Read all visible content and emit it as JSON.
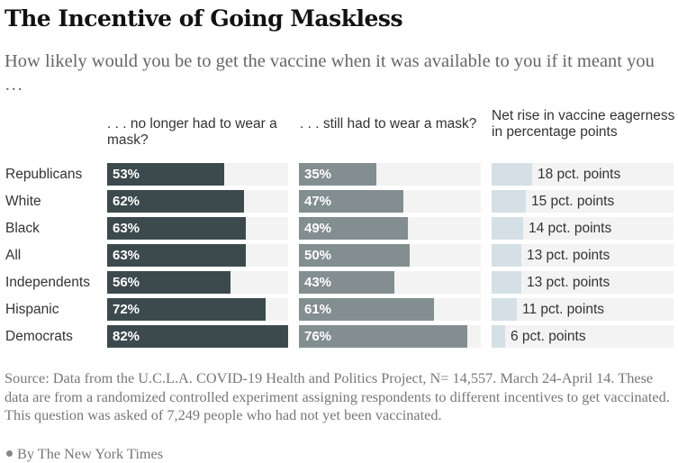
{
  "title": "The Incentive of Going Maskless",
  "subtitle": "How likely would you be to get the vaccine when it was available to you if it meant you …",
  "source": "Source: Data from the U.C.L.A. COVID-19 Health and Politics Project, N= 14,557. March 24-April 14. These data are from a randomized controlled experiment assigning respondents to different incentives to get vaccinated. This question was asked of 7,249 people who had not yet been vaccinated.",
  "byline": "By The New York Times",
  "colors": {
    "no_mask": "#3d4a4d",
    "still_mask": "#838e91",
    "net_rise": "#d4e0e5",
    "track": "#f3f3f3"
  },
  "chart_data": {
    "type": "bar",
    "orientation": "horizontal",
    "title": "The Incentive of Going Maskless",
    "subtitle": "How likely would you be to get the vaccine when it was available to you if it meant you …",
    "categories": [
      "Republicans",
      "White",
      "Black",
      "All",
      "Independents",
      "Hispanic",
      "Democrats"
    ],
    "series": [
      {
        "name": ". . . no longer had to wear a mask?",
        "unit": "%",
        "values": [
          53,
          62,
          63,
          63,
          56,
          72,
          82
        ],
        "labels": [
          "53%",
          "62%",
          "63%",
          "63%",
          "56%",
          "72%",
          "82%"
        ]
      },
      {
        "name": ". . . still had to wear a mask?",
        "unit": "%",
        "values": [
          35,
          47,
          49,
          50,
          43,
          61,
          76
        ],
        "labels": [
          "35%",
          "47%",
          "49%",
          "50%",
          "43%",
          "61%",
          "76%"
        ]
      },
      {
        "name": "Net rise in vaccine eagerness in percentage points",
        "unit": "pct. points",
        "values": [
          18,
          15,
          14,
          13,
          13,
          11,
          6
        ],
        "labels": [
          "18 pct. points",
          "15 pct. points",
          "14 pct. points",
          "13 pct. points",
          "13 pct. points",
          "11 pct. points",
          "6 pct. points"
        ]
      }
    ],
    "xlim_percent": [
      0,
      82
    ],
    "xlim_points": [
      0,
      80
    ],
    "grid": false,
    "legend": "column-headers-top"
  }
}
